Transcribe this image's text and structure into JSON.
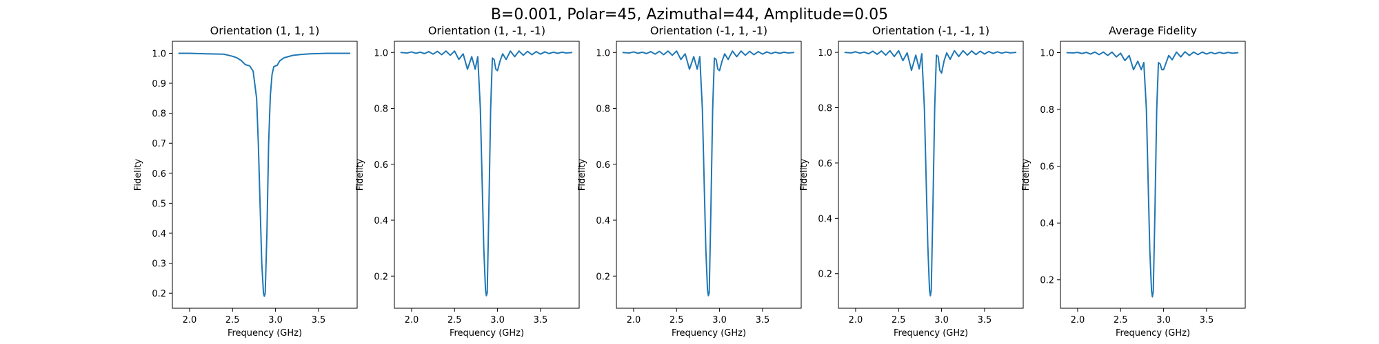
{
  "figure": {
    "suptitle": "B=0.001, Polar=45, Azimuthal=44, Amplitude=0.05"
  },
  "chart_data": [
    {
      "type": "line",
      "title": "Orientation (1, 1, 1)",
      "xlabel": "Frequency (GHz)",
      "ylabel": "Fidelity",
      "xlim": [
        1.8,
        3.95
      ],
      "ylim": [
        0.15,
        1.04
      ],
      "xticks": [
        2.0,
        2.5,
        3.0,
        3.5
      ],
      "yticks": [
        0.2,
        0.3,
        0.4,
        0.5,
        0.6,
        0.7,
        0.8,
        0.9,
        1.0
      ],
      "color": "#1f77b4",
      "series": [
        {
          "x": [
            1.87,
            2.0,
            2.2,
            2.4,
            2.5,
            2.55,
            2.6,
            2.65,
            2.7,
            2.74,
            2.78,
            2.8,
            2.82,
            2.84,
            2.86,
            2.87,
            2.88,
            2.9,
            2.92,
            2.94,
            2.96,
            2.98,
            3.0,
            3.02,
            3.05,
            3.1,
            3.2,
            3.3,
            3.4,
            3.5,
            3.6,
            3.7,
            3.87
          ],
          "y": [
            1.0,
            1.0,
            0.998,
            0.997,
            0.99,
            0.985,
            0.976,
            0.962,
            0.958,
            0.94,
            0.85,
            0.7,
            0.5,
            0.3,
            0.2,
            0.19,
            0.2,
            0.4,
            0.7,
            0.86,
            0.93,
            0.955,
            0.958,
            0.96,
            0.975,
            0.985,
            0.993,
            0.996,
            0.998,
            0.999,
            1.0,
            1.0,
            1.0
          ]
        }
      ]
    },
    {
      "type": "line",
      "title": "Orientation (1, -1, -1)",
      "xlabel": "Frequency (GHz)",
      "ylabel": "Fidelity",
      "xlim": [
        1.8,
        3.95
      ],
      "ylim": [
        0.085,
        1.04
      ],
      "xticks": [
        2.0,
        2.5,
        3.0,
        3.5
      ],
      "yticks": [
        0.2,
        0.4,
        0.6,
        0.8,
        1.0
      ],
      "color": "#1f77b4",
      "series": [
        {
          "x": [
            1.87,
            1.95,
            2.0,
            2.05,
            2.1,
            2.15,
            2.2,
            2.25,
            2.3,
            2.35,
            2.4,
            2.45,
            2.5,
            2.55,
            2.6,
            2.65,
            2.7,
            2.74,
            2.77,
            2.8,
            2.82,
            2.84,
            2.86,
            2.87,
            2.88,
            2.9,
            2.92,
            2.94,
            2.96,
            2.98,
            3.0,
            3.03,
            3.06,
            3.1,
            3.15,
            3.2,
            3.25,
            3.3,
            3.35,
            3.4,
            3.45,
            3.5,
            3.55,
            3.6,
            3.65,
            3.7,
            3.75,
            3.8,
            3.87
          ],
          "y": [
            1.0,
            0.998,
            1.002,
            0.997,
            1.001,
            0.996,
            1.003,
            0.994,
            1.004,
            0.992,
            1.005,
            0.99,
            1.005,
            0.975,
            0.995,
            0.94,
            0.985,
            0.94,
            0.985,
            0.8,
            0.55,
            0.3,
            0.15,
            0.13,
            0.14,
            0.45,
            0.8,
            0.98,
            0.975,
            0.94,
            0.935,
            0.97,
            0.995,
            0.975,
            1.005,
            0.985,
            1.005,
            0.99,
            1.004,
            0.992,
            1.003,
            0.994,
            1.002,
            0.996,
            1.001,
            0.997,
            1.001,
            0.998,
            1.0
          ]
        }
      ]
    },
    {
      "type": "line",
      "title": "Orientation (-1, 1, -1)",
      "xlabel": "Frequency (GHz)",
      "ylabel": "Fidelity",
      "xlim": [
        1.8,
        3.95
      ],
      "ylim": [
        0.085,
        1.04
      ],
      "xticks": [
        2.0,
        2.5,
        3.0,
        3.5
      ],
      "yticks": [
        0.2,
        0.4,
        0.6,
        0.8,
        1.0
      ],
      "color": "#1f77b4",
      "series": [
        {
          "x": [
            1.87,
            1.95,
            2.0,
            2.05,
            2.1,
            2.15,
            2.2,
            2.25,
            2.3,
            2.35,
            2.4,
            2.45,
            2.5,
            2.55,
            2.6,
            2.65,
            2.7,
            2.74,
            2.77,
            2.8,
            2.82,
            2.84,
            2.86,
            2.87,
            2.88,
            2.9,
            2.92,
            2.94,
            2.96,
            2.98,
            3.0,
            3.03,
            3.06,
            3.1,
            3.15,
            3.2,
            3.25,
            3.3,
            3.35,
            3.4,
            3.45,
            3.5,
            3.55,
            3.6,
            3.65,
            3.7,
            3.75,
            3.8,
            3.87
          ],
          "y": [
            1.0,
            0.998,
            1.002,
            0.997,
            1.001,
            0.996,
            1.003,
            0.994,
            1.004,
            0.992,
            1.005,
            0.99,
            1.005,
            0.975,
            0.995,
            0.94,
            0.985,
            0.94,
            0.985,
            0.8,
            0.55,
            0.3,
            0.15,
            0.13,
            0.14,
            0.45,
            0.8,
            0.98,
            0.975,
            0.94,
            0.935,
            0.97,
            0.995,
            0.975,
            1.005,
            0.985,
            1.005,
            0.99,
            1.004,
            0.992,
            1.003,
            0.994,
            1.002,
            0.996,
            1.001,
            0.997,
            1.001,
            0.998,
            1.0
          ]
        }
      ]
    },
    {
      "type": "line",
      "title": "Orientation (-1, -1, 1)",
      "xlabel": "Frequency (GHz)",
      "ylabel": "Fidelity",
      "xlim": [
        1.8,
        3.95
      ],
      "ylim": [
        0.075,
        1.04
      ],
      "xticks": [
        2.0,
        2.5,
        3.0,
        3.5
      ],
      "yticks": [
        0.2,
        0.4,
        0.6,
        0.8,
        1.0
      ],
      "color": "#1f77b4",
      "series": [
        {
          "x": [
            1.87,
            1.95,
            2.0,
            2.05,
            2.1,
            2.15,
            2.2,
            2.25,
            2.3,
            2.35,
            2.4,
            2.45,
            2.5,
            2.55,
            2.6,
            2.65,
            2.7,
            2.74,
            2.77,
            2.8,
            2.82,
            2.84,
            2.86,
            2.87,
            2.88,
            2.9,
            2.92,
            2.94,
            2.96,
            2.98,
            3.0,
            3.03,
            3.06,
            3.1,
            3.15,
            3.2,
            3.25,
            3.3,
            3.35,
            3.4,
            3.45,
            3.5,
            3.55,
            3.6,
            3.65,
            3.7,
            3.75,
            3.8,
            3.87
          ],
          "y": [
            1.0,
            0.998,
            1.002,
            0.997,
            1.001,
            0.995,
            1.004,
            0.993,
            1.005,
            0.99,
            1.006,
            0.985,
            1.006,
            0.97,
            0.998,
            0.935,
            0.99,
            0.94,
            0.995,
            0.8,
            0.55,
            0.3,
            0.14,
            0.12,
            0.14,
            0.45,
            0.8,
            0.99,
            0.985,
            0.935,
            0.925,
            0.97,
            0.998,
            0.975,
            1.006,
            0.985,
            1.006,
            0.99,
            1.005,
            0.992,
            1.004,
            0.994,
            1.003,
            0.996,
            1.002,
            0.997,
            1.001,
            0.998,
            1.0
          ]
        }
      ]
    },
    {
      "type": "line",
      "title": "Average Fidelity",
      "xlabel": "Frequency (GHz)",
      "ylabel": "Fidelity",
      "xlim": [
        1.8,
        3.95
      ],
      "ylim": [
        0.1,
        1.04
      ],
      "xticks": [
        2.0,
        2.5,
        3.0,
        3.5
      ],
      "yticks": [
        0.2,
        0.4,
        0.6,
        0.8,
        1.0
      ],
      "color": "#1f77b4",
      "series": [
        {
          "x": [
            1.87,
            1.95,
            2.0,
            2.05,
            2.1,
            2.15,
            2.2,
            2.25,
            2.3,
            2.35,
            2.4,
            2.45,
            2.5,
            2.55,
            2.6,
            2.65,
            2.7,
            2.74,
            2.77,
            2.8,
            2.82,
            2.84,
            2.86,
            2.87,
            2.88,
            2.9,
            2.92,
            2.94,
            2.96,
            2.98,
            3.0,
            3.03,
            3.06,
            3.1,
            3.15,
            3.2,
            3.25,
            3.3,
            3.35,
            3.4,
            3.45,
            3.5,
            3.55,
            3.6,
            3.65,
            3.7,
            3.75,
            3.8,
            3.87
          ],
          "y": [
            1.0,
            0.999,
            1.001,
            0.997,
            1.001,
            0.995,
            1.002,
            0.993,
            1.002,
            0.99,
            1.002,
            0.985,
            0.998,
            0.972,
            0.99,
            0.94,
            0.97,
            0.94,
            0.965,
            0.8,
            0.55,
            0.3,
            0.16,
            0.14,
            0.16,
            0.45,
            0.8,
            0.965,
            0.96,
            0.94,
            0.94,
            0.965,
            0.99,
            0.975,
            1.002,
            0.985,
            1.003,
            0.99,
            1.002,
            0.993,
            1.002,
            0.995,
            1.001,
            0.996,
            1.001,
            0.997,
            1.001,
            0.998,
            1.0
          ]
        }
      ]
    }
  ]
}
